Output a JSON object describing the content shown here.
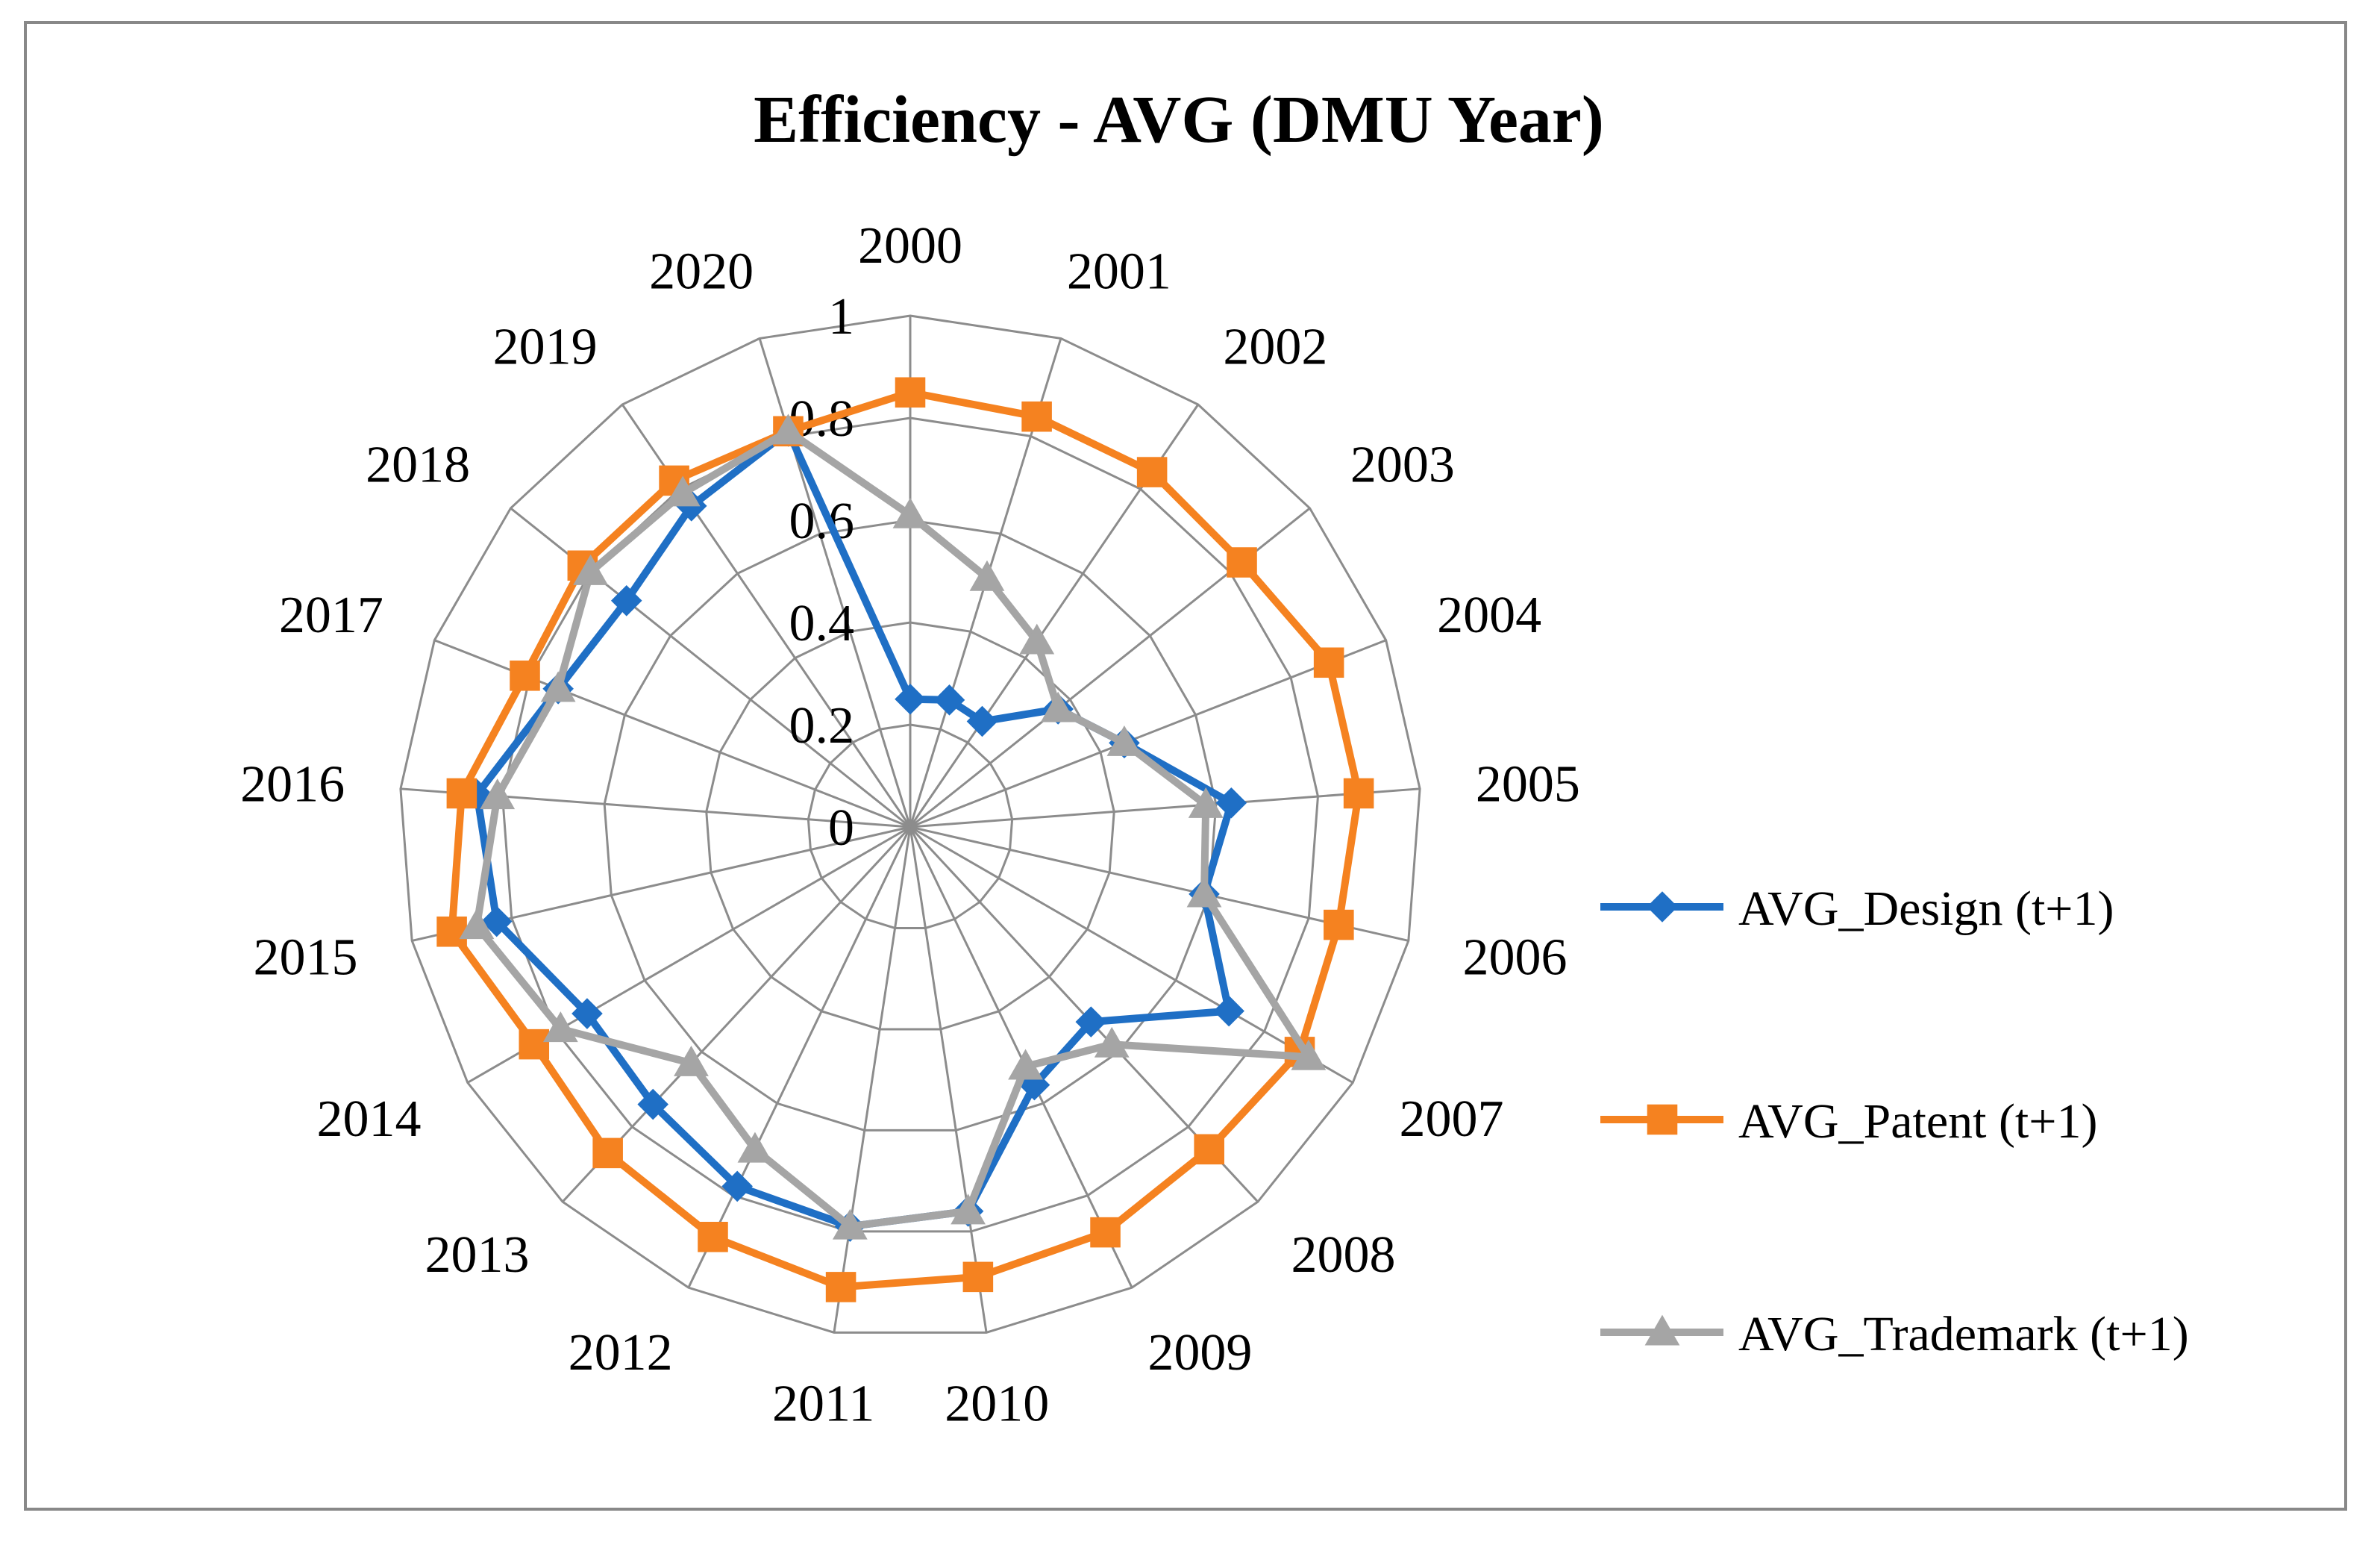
{
  "chart_data": {
    "type": "radar",
    "title": "Efficiency - AVG (DMU Year)",
    "categories": [
      "2000",
      "2001",
      "2002",
      "2003",
      "2004",
      "2005",
      "2006",
      "2007",
      "2008",
      "2009",
      "2010",
      "2011",
      "2012",
      "2013",
      "2014",
      "2015",
      "2016",
      "2017",
      "2018",
      "2019",
      "2020"
    ],
    "radial_range": [
      0,
      1
    ],
    "radial_ticks": [
      "0",
      "0.2",
      "0.4",
      "0.6",
      "0.8",
      "1"
    ],
    "grid": true,
    "legend_position": "right",
    "series": [
      {
        "name": "AVG_Design (t+1)",
        "color": "#1F6FC5",
        "marker": "diamond",
        "values": [
          0.25,
          0.26,
          0.25,
          0.37,
          0.45,
          0.63,
          0.59,
          0.72,
          0.52,
          0.56,
          0.76,
          0.79,
          0.78,
          0.74,
          0.73,
          0.83,
          0.85,
          0.74,
          0.71,
          0.76,
          0.81
        ]
      },
      {
        "name": "AVG_Patent (t+1)",
        "color": "#F58220",
        "marker": "square",
        "values": [
          0.85,
          0.84,
          0.84,
          0.83,
          0.88,
          0.88,
          0.86,
          0.88,
          0.86,
          0.88,
          0.89,
          0.91,
          0.89,
          0.87,
          0.85,
          0.92,
          0.88,
          0.81,
          0.82,
          0.82,
          0.81
        ]
      },
      {
        "name": "AVG_Trademark (t+1)",
        "color": "#A5A5A5",
        "marker": "triangle",
        "values": [
          0.61,
          0.51,
          0.44,
          0.37,
          0.45,
          0.58,
          0.59,
          0.9,
          0.58,
          0.52,
          0.76,
          0.79,
          0.7,
          0.63,
          0.79,
          0.87,
          0.81,
          0.74,
          0.8,
          0.79,
          0.81
        ]
      }
    ]
  }
}
